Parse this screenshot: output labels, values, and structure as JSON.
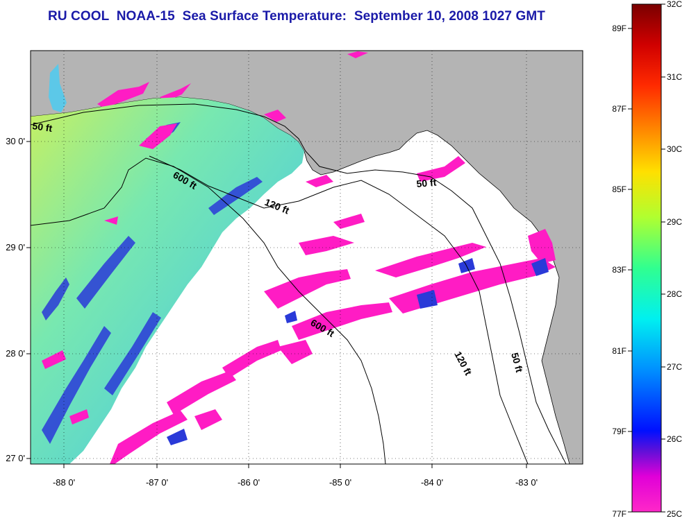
{
  "title": "RU COOL  NOAA-15  Sea Surface Temperature:  September 10, 2008 1027 GMT",
  "axes": {
    "lon_labels": [
      "-88 0'",
      "-87 0'",
      "-86 0'",
      "-85 0'",
      "-84 0'",
      "-83 0'"
    ],
    "lat_labels": [
      "30 0'",
      "29 0'",
      "28 0'",
      "27 0'"
    ]
  },
  "isobaths": [
    "50 ft",
    "600 ft",
    "120 ft",
    "50 ft",
    "600 ft",
    "120 ft",
    "50 ft"
  ],
  "colorbar": {
    "celsius": [
      "32C",
      "31C",
      "30C",
      "29C",
      "28C",
      "27C",
      "26C",
      "25C"
    ],
    "fahrenheit": [
      "89F",
      "87F",
      "85F",
      "83F",
      "81F",
      "79F",
      "77F"
    ],
    "stops": [
      "#7a0000",
      "#d00000",
      "#ff2a00",
      "#ff7a00",
      "#ffd000",
      "#e8ff20",
      "#80ff40",
      "#20ffa0",
      "#00f0f0",
      "#00a0ff",
      "#0030ff",
      "#3a10d0",
      "#a020e0",
      "#ff00d0",
      "#ff20c8"
    ]
  },
  "colors": {
    "land": "#b4b4b4",
    "cloud": "#ffffff",
    "title": "#1a1aa8",
    "cool_water": "#5cc8e8",
    "warm_water": "#c8f060",
    "cold_patch": "#2a3ad8",
    "magenta_patch": "#ff1cc4"
  }
}
